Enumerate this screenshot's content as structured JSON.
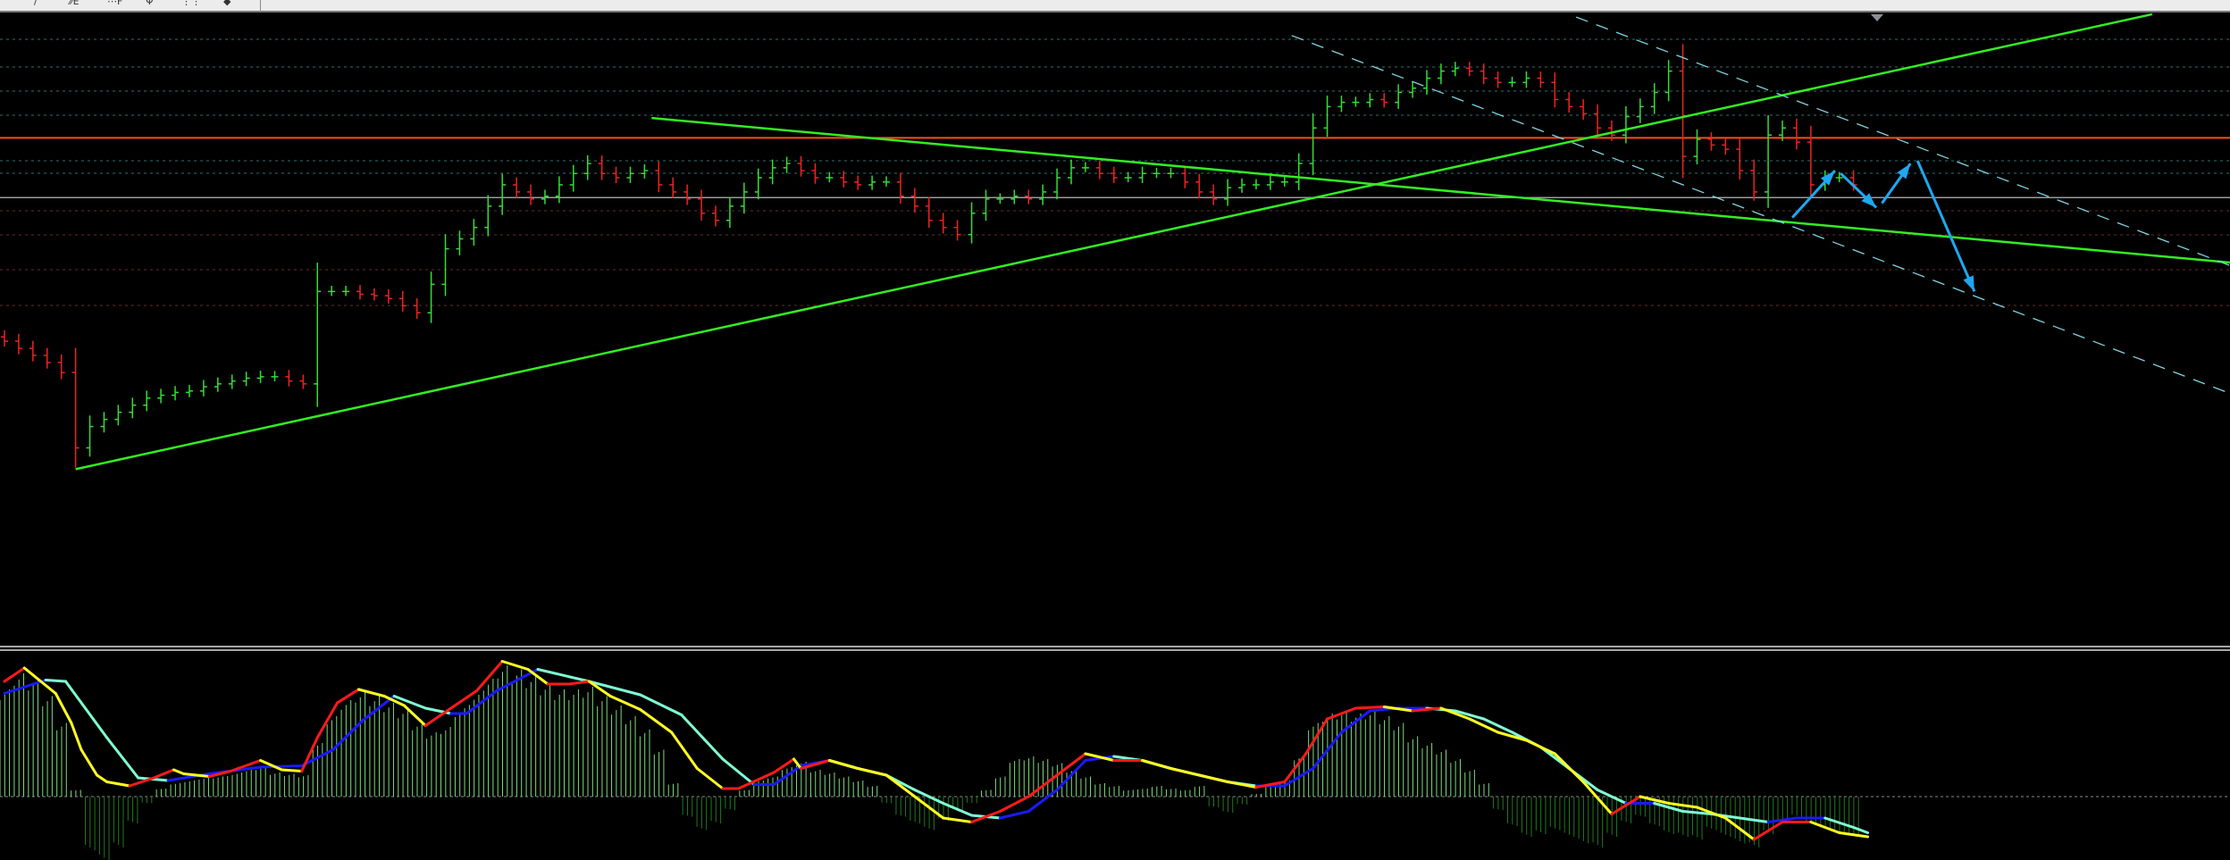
{
  "toolbar": {
    "tools": [
      {
        "icon": "pencil-icon",
        "glyph": "/"
      },
      {
        "icon": "fibonacci-expansion-icon",
        "glyph": "⁄⁄E"
      },
      {
        "icon": "fibonacci-fan-icon",
        "glyph": "⋯F"
      },
      {
        "icon": "andrews-pitchfork-icon",
        "glyph": "Ψ"
      },
      {
        "icon": "channel-icon",
        "glyph": "⋮⋮"
      },
      {
        "icon": "shapes-dropdown-icon",
        "glyph": "◆"
      }
    ]
  },
  "colors": {
    "background": "#000000",
    "bull_bar": "#33dd33",
    "bear_bar": "#ee2222",
    "trendline": "#33ee22",
    "channel": "#7fd4e0",
    "resistance": "#ff4a1a",
    "support": "#9a9a9a",
    "arrow": "#1ea8f0",
    "fast_up": "#ff1a1a",
    "fast_down": "#ffff22",
    "slow_up": "#1a1aff",
    "slow_down": "#7fffd4",
    "hist_pos": "#7ddc7d",
    "hist_neg": "#1f7a1f"
  },
  "chart_data": [
    {
      "type": "ohlc-bars",
      "closes": [
        110,
        105,
        100,
        95,
        88,
        35,
        50,
        55,
        60,
        65,
        70,
        72,
        74,
        75,
        78,
        80,
        82,
        84,
        85,
        85,
        82,
        80,
        145,
        145,
        145,
        143,
        142,
        140,
        135,
        130,
        150,
        175,
        182,
        190,
        205,
        220,
        215,
        210,
        212,
        220,
        228,
        235,
        228,
        225,
        228,
        230,
        220,
        215,
        210,
        200,
        195,
        205,
        215,
        225,
        232,
        235,
        230,
        225,
        225,
        222,
        220,
        222,
        222,
        212,
        205,
        195,
        190,
        185,
        200,
        210,
        210,
        212,
        210,
        215,
        225,
        232,
        232,
        228,
        225,
        225,
        228,
        228,
        228,
        222,
        215,
        210,
        218,
        220,
        220,
        222,
        222,
        235,
        260,
        275,
        278,
        278,
        280,
        278,
        285,
        288,
        295,
        300,
        302,
        300,
        295,
        292,
        292,
        295,
        292,
        280,
        275,
        270,
        260,
        255,
        268,
        275,
        285,
        300,
        240,
        252,
        248,
        245,
        230,
        215,
        255,
        260,
        250,
        220,
        225,
        225,
        220
      ],
      "ylim": [
        -105,
        340
      ],
      "horizontal_lines": [
        {
          "name": "resistance",
          "price": 253
        },
        {
          "name": "support",
          "price": 211
        }
      ],
      "trendlines": [
        {
          "name": "rising-trendline",
          "from": [
            5,
            20
          ],
          "to": [
            151,
            340
          ]
        },
        {
          "name": "falling-trendline",
          "from": [
            45.5,
            267
          ],
          "to": [
            156.8,
            165
          ]
        }
      ],
      "channel_lines": [
        {
          "name": "channel-upper",
          "from": [
            110.5,
            338
          ],
          "to": [
            156.8,
            162
          ]
        },
        {
          "name": "channel-lower",
          "from": [
            90.5,
            325
          ],
          "to": [
            156.8,
            72
          ]
        }
      ],
      "forecast_arrows": [
        {
          "from": [
            125.7,
            197
          ],
          "to": [
            128.7,
            230
          ]
        },
        {
          "from": [
            129.1,
            228
          ],
          "to": [
            131.6,
            204
          ]
        },
        {
          "from": [
            132,
            207
          ],
          "to": [
            134,
            235
          ]
        },
        {
          "from": [
            134.5,
            237
          ],
          "to": [
            138.5,
            145
          ]
        }
      ]
    },
    {
      "type": "oscillator",
      "fast": [
        [
          0,
          86
        ],
        [
          1.4,
          96
        ],
        [
          3.6,
          77
        ],
        [
          4.7,
          55
        ],
        [
          5.4,
          35
        ],
        [
          6.5,
          16
        ],
        [
          7.2,
          11
        ],
        [
          8.8,
          8
        ],
        [
          10.5,
          14
        ],
        [
          11.9,
          20
        ],
        [
          12.6,
          17
        ],
        [
          14.4,
          15
        ],
        [
          15.9,
          19
        ],
        [
          18,
          27
        ],
        [
          19.5,
          20
        ],
        [
          20.9,
          19
        ],
        [
          22,
          44
        ],
        [
          23.4,
          70
        ],
        [
          24.9,
          80
        ],
        [
          26.7,
          75
        ],
        [
          28.1,
          68
        ],
        [
          29.6,
          53
        ],
        [
          30.7,
          61
        ],
        [
          33.2,
          79
        ],
        [
          35,
          101
        ],
        [
          36.8,
          95
        ],
        [
          38.2,
          84
        ],
        [
          39.7,
          84
        ],
        [
          41.1,
          86
        ],
        [
          42.6,
          75
        ],
        [
          44.7,
          65
        ],
        [
          46.9,
          48
        ],
        [
          48.7,
          21
        ],
        [
          50.5,
          6
        ],
        [
          51.6,
          6
        ],
        [
          54.1,
          18
        ],
        [
          55.5,
          28
        ],
        [
          56,
          21
        ],
        [
          58,
          27
        ],
        [
          60,
          21
        ],
        [
          62,
          16
        ],
        [
          64,
          0
        ],
        [
          66,
          -16
        ],
        [
          68,
          -19
        ],
        [
          70,
          -11
        ],
        [
          72,
          0
        ],
        [
          74,
          16
        ],
        [
          76,
          32
        ],
        [
          78,
          27
        ],
        [
          80,
          27
        ],
        [
          82,
          21
        ],
        [
          84,
          16
        ],
        [
          86,
          11
        ],
        [
          88,
          7
        ],
        [
          90,
          11
        ],
        [
          91.5,
          32
        ],
        [
          93,
          58
        ],
        [
          95,
          66
        ],
        [
          97,
          67
        ],
        [
          99,
          64
        ],
        [
          101,
          66
        ],
        [
          103,
          58
        ],
        [
          105,
          48
        ],
        [
          107,
          42
        ],
        [
          109,
          32
        ],
        [
          111,
          11
        ],
        [
          113,
          -13
        ],
        [
          115,
          0
        ],
        [
          117,
          -5
        ],
        [
          119,
          -8
        ],
        [
          121,
          -16
        ],
        [
          123,
          -32
        ],
        [
          125,
          -19
        ],
        [
          127,
          -19
        ],
        [
          129,
          -27
        ],
        [
          131,
          -30
        ]
      ],
      "slow": [
        [
          0,
          77
        ],
        [
          2.9,
          87
        ],
        [
          4.3,
          86
        ],
        [
          7.2,
          44
        ],
        [
          9.4,
          14
        ],
        [
          11.5,
          12
        ],
        [
          14.4,
          17
        ],
        [
          18,
          22
        ],
        [
          20.9,
          23
        ],
        [
          23.1,
          35
        ],
        [
          25.2,
          57
        ],
        [
          27.4,
          75
        ],
        [
          29.6,
          66
        ],
        [
          31.4,
          62
        ],
        [
          32.5,
          62
        ],
        [
          34.6,
          79
        ],
        [
          37.5,
          95
        ],
        [
          41.1,
          86
        ],
        [
          44.7,
          76
        ],
        [
          47.6,
          61
        ],
        [
          50.5,
          28
        ],
        [
          52.7,
          9
        ],
        [
          54.1,
          9
        ],
        [
          56,
          23
        ],
        [
          58,
          27
        ],
        [
          60,
          21
        ],
        [
          62,
          16
        ],
        [
          64,
          5
        ],
        [
          66,
          -5
        ],
        [
          68,
          -14
        ],
        [
          70,
          -16
        ],
        [
          72,
          -11
        ],
        [
          74,
          5
        ],
        [
          76,
          27
        ],
        [
          78,
          30
        ],
        [
          80,
          27
        ],
        [
          82,
          21
        ],
        [
          84,
          16
        ],
        [
          86,
          11
        ],
        [
          88,
          8
        ],
        [
          90,
          8
        ],
        [
          92,
          21
        ],
        [
          94,
          48
        ],
        [
          96,
          64
        ],
        [
          98,
          66
        ],
        [
          100,
          66
        ],
        [
          102,
          64
        ],
        [
          104,
          58
        ],
        [
          106,
          48
        ],
        [
          108,
          37
        ],
        [
          110,
          21
        ],
        [
          112,
          5
        ],
        [
          114,
          -5
        ],
        [
          116,
          -5
        ],
        [
          118,
          -11
        ],
        [
          120,
          -13
        ],
        [
          122,
          -16
        ],
        [
          124,
          -19
        ],
        [
          126,
          -16
        ],
        [
          128,
          -16
        ],
        [
          130,
          -23
        ],
        [
          131,
          -27
        ]
      ],
      "histogram": [
        80,
        92,
        88,
        75,
        55,
        5,
        -40,
        -48,
        -38,
        -20,
        -5,
        6,
        10,
        12,
        14,
        15,
        17,
        20,
        22,
        18,
        17,
        16,
        40,
        60,
        72,
        78,
        75,
        70,
        65,
        55,
        48,
        52,
        66,
        76,
        88,
        98,
        95,
        90,
        84,
        80,
        80,
        82,
        75,
        68,
        60,
        50,
        35,
        10,
        -15,
        -25,
        -20,
        -10,
        5,
        12,
        15,
        22,
        26,
        20,
        18,
        15,
        12,
        8,
        -5,
        -15,
        -20,
        -25,
        -18,
        -10,
        -5,
        5,
        15,
        28,
        30,
        28,
        25,
        20,
        15,
        10,
        8,
        5,
        6,
        8,
        6,
        5,
        8,
        -8,
        -12,
        -6,
        2,
        10,
        12,
        30,
        55,
        62,
        64,
        62,
        64,
        60,
        55,
        45,
        40,
        35,
        28,
        20,
        10,
        -10,
        -22,
        -30,
        -28,
        -25,
        -30,
        -35,
        -38,
        -30,
        -20,
        -15,
        -22,
        -28,
        -30,
        -32,
        -25,
        -30,
        -35,
        -38,
        -28,
        -20,
        -15,
        -20,
        -25,
        -28,
        -30
      ],
      "zero_line": 0
    }
  ]
}
